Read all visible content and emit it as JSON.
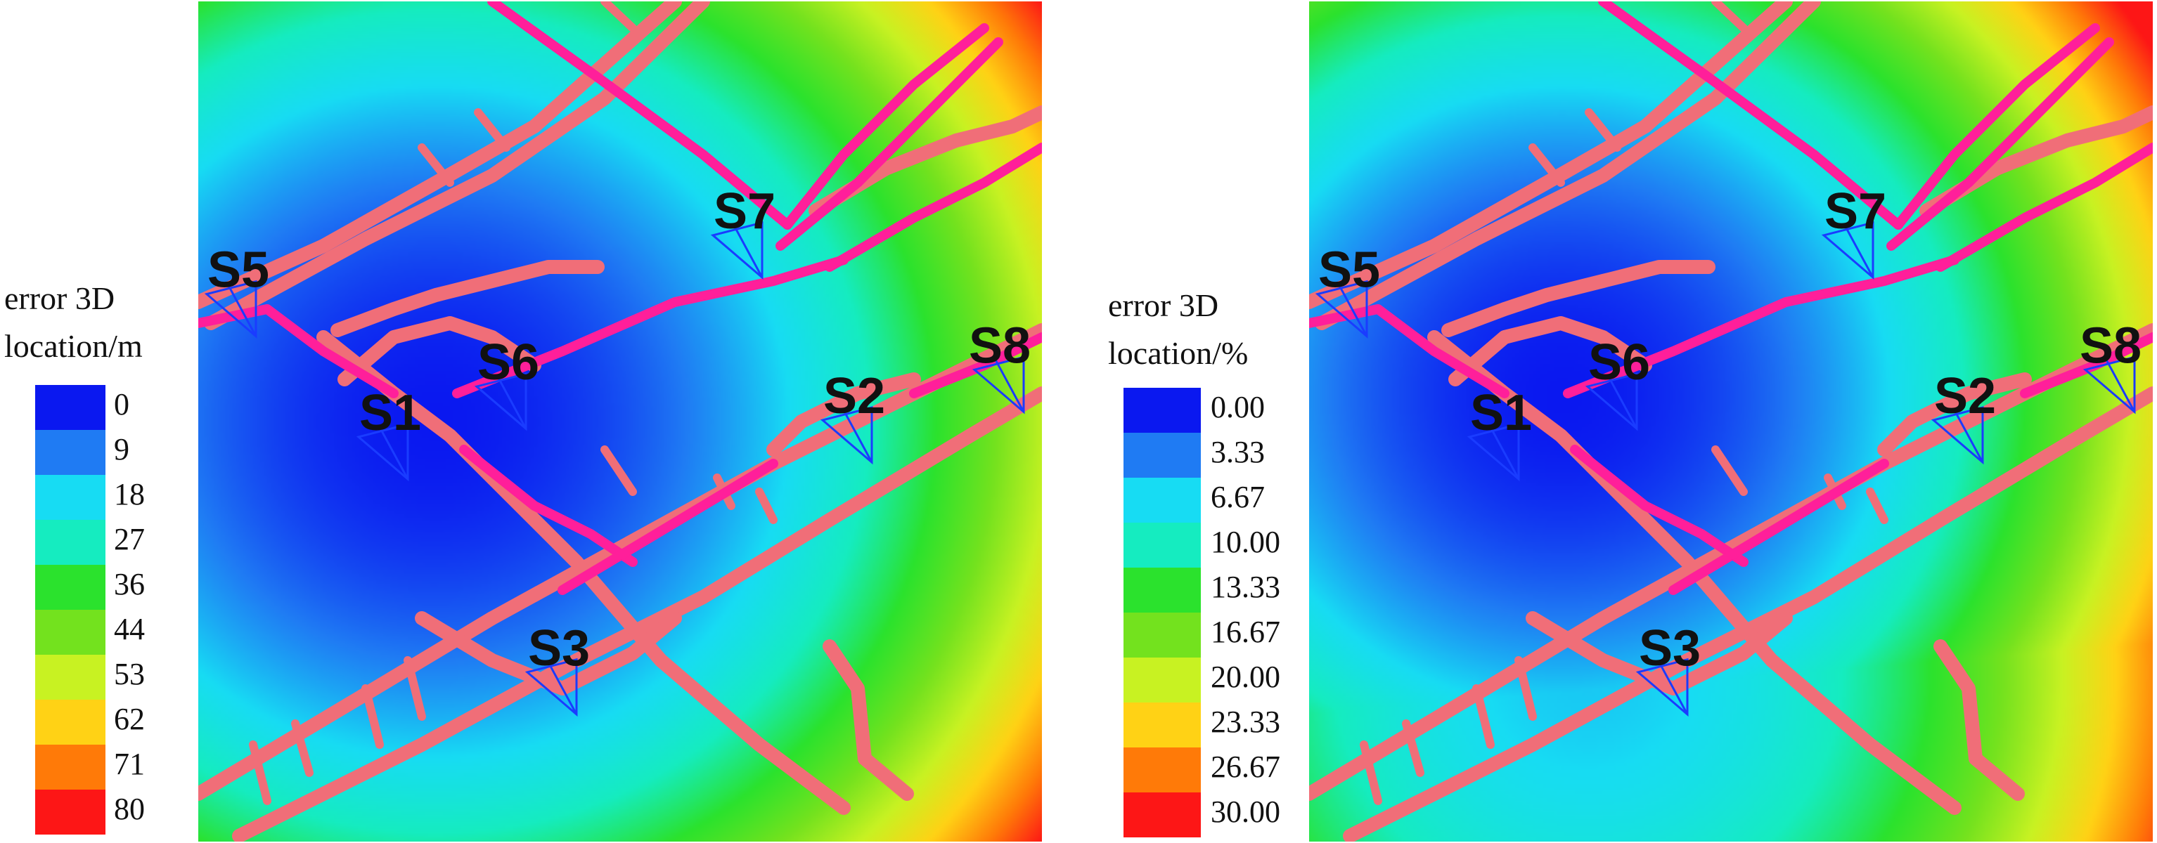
{
  "chart_data": [
    {
      "type": "heatmap",
      "title": "",
      "legend": {
        "title_lines": [
          "error 3D",
          "location/m"
        ],
        "ticks": [
          "0",
          "9",
          "18",
          "27",
          "36",
          "44",
          "53",
          "62",
          "71",
          "80"
        ],
        "colors": [
          "#0a18f0",
          "#1f7bf3",
          "#17dcf3",
          "#15ecc0",
          "#2be22d",
          "#73e21e",
          "#c8f222",
          "#ffd215",
          "#ff7a08",
          "#fd1616"
        ],
        "placement": "left"
      },
      "field": {
        "vmin": 0,
        "vmax": 80,
        "minimum_near": "S6",
        "centers": [
          [
            0.28,
            0.5,
            0
          ]
        ],
        "scale": 100
      },
      "stations": [
        {
          "name": "S5",
          "x": 0.06,
          "y": 0.34
        },
        {
          "name": "S6",
          "x": 0.38,
          "y": 0.45
        },
        {
          "name": "S1",
          "x": 0.24,
          "y": 0.51
        },
        {
          "name": "S7",
          "x": 0.66,
          "y": 0.27
        },
        {
          "name": "S2",
          "x": 0.79,
          "y": 0.49
        },
        {
          "name": "S8",
          "x": 0.97,
          "y": 0.43
        },
        {
          "name": "S3",
          "x": 0.44,
          "y": 0.79
        }
      ]
    },
    {
      "type": "heatmap",
      "title": "",
      "legend": {
        "title_lines": [
          "error 3D",
          "location/%"
        ],
        "ticks": [
          "0.00",
          "3.33",
          "6.67",
          "10.00",
          "13.33",
          "16.67",
          "20.00",
          "23.33",
          "26.67",
          "30.00"
        ],
        "colors": [
          "#0a18f0",
          "#1f7bf3",
          "#17dcf3",
          "#15ecc0",
          "#2be22d",
          "#73e21e",
          "#c8f222",
          "#ffd215",
          "#ff7a08",
          "#fd1616"
        ],
        "placement": "left"
      },
      "field": {
        "vmin": 0,
        "vmax": 30,
        "minimum_near": "S6",
        "centers": [
          [
            0.3,
            0.47,
            0
          ],
          [
            0.33,
            0.8,
            6
          ]
        ],
        "scale": 44
      },
      "stations": [
        {
          "name": "S5",
          "x": 0.06,
          "y": 0.34
        },
        {
          "name": "S6",
          "x": 0.38,
          "y": 0.45
        },
        {
          "name": "S1",
          "x": 0.24,
          "y": 0.51
        },
        {
          "name": "S7",
          "x": 0.66,
          "y": 0.27
        },
        {
          "name": "S2",
          "x": 0.79,
          "y": 0.49
        },
        {
          "name": "S8",
          "x": 0.97,
          "y": 0.43
        },
        {
          "name": "S3",
          "x": 0.44,
          "y": 0.79
        }
      ]
    }
  ],
  "tunnel_color": "#f06e78",
  "tunnel_highlight_color": "#ff1f9a",
  "station_marker_color": "#1a3cff"
}
